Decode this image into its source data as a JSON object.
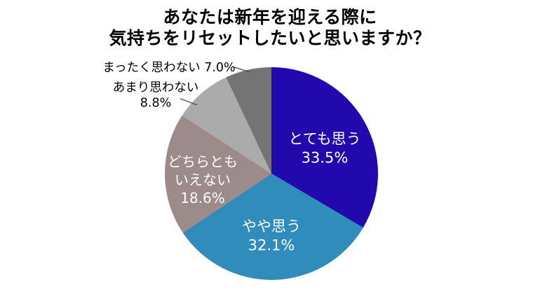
{
  "title": {
    "line1": "あなたは新年を迎える際に",
    "line2": "気持ちをリセットしたいと思いますか？",
    "full": "あなたは新年を迎える際に気持ちをリセットしたいと思いますか？"
  },
  "chart_data": {
    "type": "pie",
    "title": "あなたは新年を迎える際に気持ちをリセットしたいと思いますか？",
    "start_angle_deg": 0,
    "direction": "clockwise",
    "legend_position": "none",
    "background_color": "#ffffff",
    "slices": [
      {
        "label": "とても思う",
        "value": 33.5,
        "pct_label": "33.5%",
        "color": "#2209AD",
        "label_placement": "inside",
        "label_color": "#FFFFFF"
      },
      {
        "label": "やや思う",
        "value": 32.1,
        "pct_label": "32.1%",
        "color": "#2F8CBB",
        "label_placement": "inside",
        "label_color": "#FFFFFF"
      },
      {
        "label": "どちらともいえない",
        "label_lines": [
          "どちらとも",
          "いえない"
        ],
        "value": 18.6,
        "pct_label": "18.6%",
        "color": "#9D8B8C",
        "label_placement": "inside",
        "label_color": "#FFFFFF"
      },
      {
        "label": "あまり思わない",
        "value": 8.8,
        "pct_label": "8.8%",
        "color": "#ABABAB",
        "label_placement": "outside",
        "label_color": "#000000"
      },
      {
        "label": "まったく思わない",
        "value": 7.0,
        "pct_label": "7.0%",
        "color": "#747474",
        "label_placement": "outside",
        "label_color": "#000000"
      }
    ]
  }
}
